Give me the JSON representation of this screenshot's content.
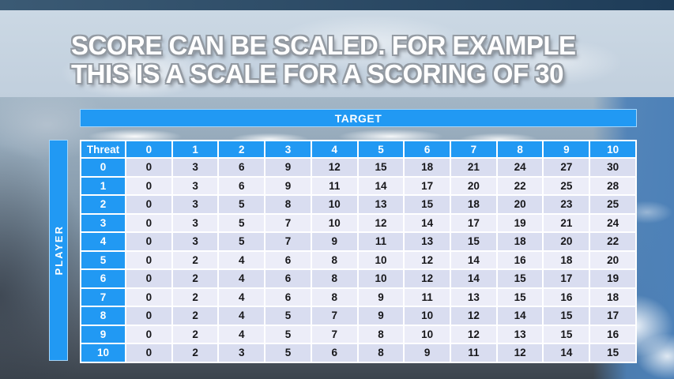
{
  "slide": {
    "title_line1": "SCORE CAN BE SCALED. FOR EXAMPLE",
    "title_line2": "THIS IS A SCALE FOR A SCORING OF 30"
  },
  "matrix": {
    "target_label": "TARGET",
    "player_label": "PLAYER",
    "corner_label": "Threat",
    "col_headers": [
      "0",
      "1",
      "2",
      "3",
      "4",
      "5",
      "6",
      "7",
      "8",
      "9",
      "10"
    ],
    "row_headers": [
      "0",
      "1",
      "2",
      "3",
      "4",
      "5",
      "6",
      "7",
      "8",
      "9",
      "10"
    ],
    "rows": [
      [
        0,
        3,
        6,
        9,
        12,
        15,
        18,
        21,
        24,
        27,
        30
      ],
      [
        0,
        3,
        6,
        9,
        11,
        14,
        17,
        20,
        22,
        25,
        28
      ],
      [
        0,
        3,
        5,
        8,
        10,
        13,
        15,
        18,
        20,
        23,
        25
      ],
      [
        0,
        3,
        5,
        7,
        10,
        12,
        14,
        17,
        19,
        21,
        24
      ],
      [
        0,
        3,
        5,
        7,
        9,
        11,
        13,
        15,
        18,
        20,
        22
      ],
      [
        0,
        2,
        4,
        6,
        8,
        10,
        12,
        14,
        16,
        18,
        20
      ],
      [
        0,
        2,
        4,
        6,
        8,
        10,
        12,
        14,
        15,
        17,
        19
      ],
      [
        0,
        2,
        4,
        6,
        8,
        9,
        11,
        13,
        15,
        16,
        18
      ],
      [
        0,
        2,
        4,
        5,
        7,
        9,
        10,
        12,
        14,
        15,
        17
      ],
      [
        0,
        2,
        4,
        5,
        7,
        8,
        10,
        12,
        13,
        15,
        16
      ],
      [
        0,
        2,
        3,
        5,
        6,
        8,
        9,
        11,
        12,
        14,
        15
      ]
    ]
  },
  "colors": {
    "accent_blue": "#2199F3",
    "row_dark": "#D9DDF0",
    "row_light": "#ECEDF8",
    "cell_text": "#17171A",
    "title_band": "#C5D2E0",
    "top_strip": "#2E4D68"
  }
}
